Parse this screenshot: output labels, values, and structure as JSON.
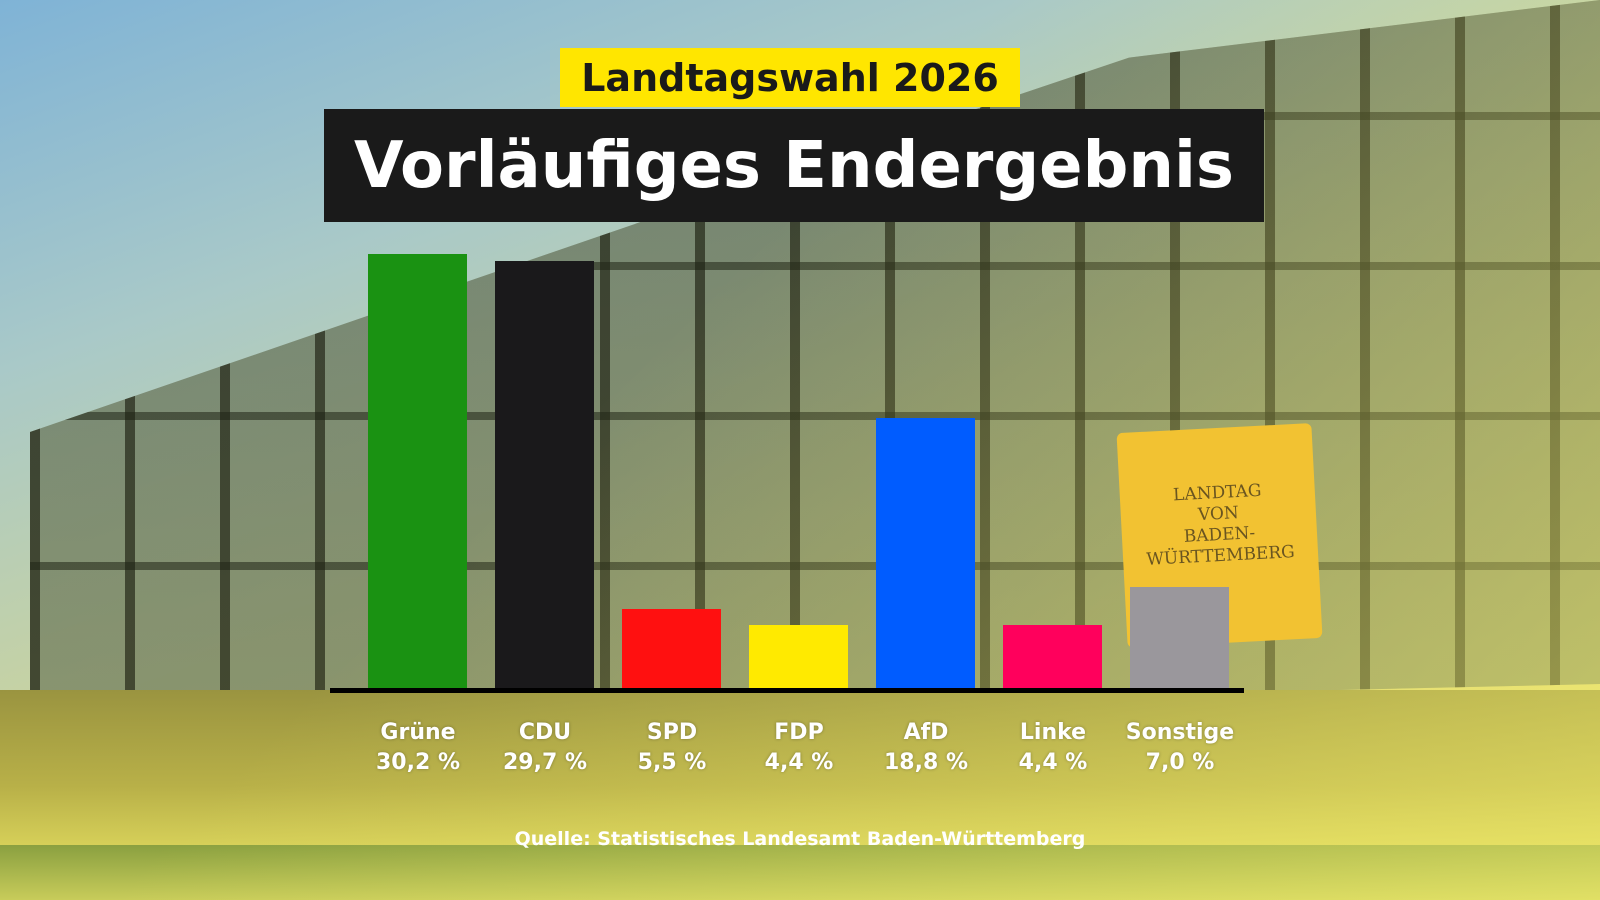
{
  "header": {
    "kicker": "Landtagswahl 2026",
    "title": "Vorläufiges Endergebnis"
  },
  "chart_data": {
    "type": "bar",
    "title": "Vorläufiges Endergebnis",
    "subtitle": "Landtagswahl 2026",
    "categories": [
      "Grüne",
      "CDU",
      "SPD",
      "FDP",
      "AfD",
      "Linke",
      "Sonstige"
    ],
    "values": [
      30.2,
      29.7,
      5.5,
      4.4,
      18.8,
      4.4,
      7.0
    ],
    "value_labels": [
      "30,2 %",
      "29,7 %",
      "5,5 %",
      "4,4 %",
      "18,8 %",
      "4,4 %",
      "7,0 %"
    ],
    "colors": [
      "#1a9212",
      "#1a191b",
      "#ff1010",
      "#ffea00",
      "#005cff",
      "#ff005c",
      "#9a979c"
    ],
    "unit": "%",
    "ylim": [
      0,
      30.2
    ],
    "grid": false,
    "source": "Quelle: Statistisches Landesamt Baden-Württemberg"
  },
  "sign": [
    "LANDTAG",
    "VON",
    "BADEN-",
    "WÜRTTEMBERG"
  ]
}
